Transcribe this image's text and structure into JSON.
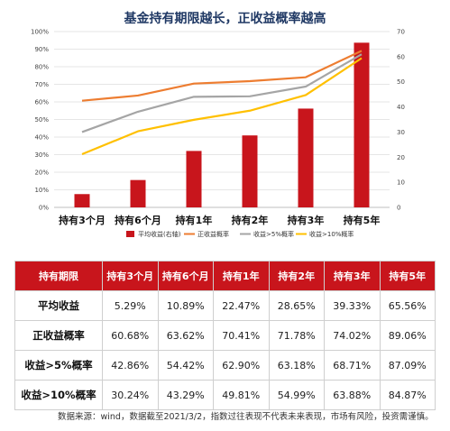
{
  "title": "基金持有期限越长，正收益概率越高",
  "chart_data": {
    "type": "bar",
    "categories": [
      "持有3个月",
      "持有6个月",
      "持有1年",
      "持有2年",
      "持有3年",
      "持有5年"
    ],
    "left_axis": {
      "ticks": [
        "0%",
        "10%",
        "20%",
        "30%",
        "40%",
        "50%",
        "60%",
        "70%",
        "80%",
        "90%",
        "100%"
      ],
      "ylim": [
        0,
        100
      ]
    },
    "right_axis": {
      "ticks": [
        "0",
        "10",
        "20",
        "30",
        "40",
        "50",
        "60",
        "70"
      ],
      "ylim": [
        0,
        70
      ]
    },
    "series": [
      {
        "name": "平均收益(右轴)",
        "kind": "bar",
        "axis": "right",
        "color": "#c8151c",
        "values": [
          5.29,
          10.89,
          22.47,
          28.65,
          39.33,
          65.56
        ]
      },
      {
        "name": "正收益概率",
        "kind": "line",
        "axis": "left",
        "color": "#ed7d31",
        "values": [
          60.68,
          63.62,
          70.41,
          71.78,
          74.02,
          89.06
        ]
      },
      {
        "name": "收益>5%概率",
        "kind": "line",
        "axis": "left",
        "color": "#a5a5a5",
        "values": [
          42.86,
          54.42,
          62.9,
          63.18,
          68.71,
          87.09
        ]
      },
      {
        "name": "收益>10%概率",
        "kind": "line",
        "axis": "left",
        "color": "#ffc000",
        "values": [
          30.24,
          43.29,
          49.81,
          54.99,
          63.88,
          84.87
        ]
      }
    ],
    "legend_position": "bottom"
  },
  "table": {
    "header": [
      "持有期限",
      "持有3个月",
      "持有6个月",
      "持有1年",
      "持有2年",
      "持有3年",
      "持有5年"
    ],
    "rows": [
      {
        "label": "平均收益",
        "values": [
          "5.29%",
          "10.89%",
          "22.47%",
          "28.65%",
          "39.33%",
          "65.56%"
        ]
      },
      {
        "label": "正收益概率",
        "values": [
          "60.68%",
          "63.62%",
          "70.41%",
          "71.78%",
          "74.02%",
          "89.06%"
        ]
      },
      {
        "label": "收益>5%概率",
        "values": [
          "42.86%",
          "54.42%",
          "62.90%",
          "63.18%",
          "68.71%",
          "87.09%"
        ]
      },
      {
        "label": "收益>10%概率",
        "values": [
          "30.24%",
          "43.29%",
          "49.81%",
          "54.99%",
          "63.88%",
          "84.87%"
        ]
      }
    ]
  },
  "footnote": "数据来源：wind，数据截至2021/3/2，指数过往表现不代表未来表现，市场有风险，投资需谨慎。"
}
